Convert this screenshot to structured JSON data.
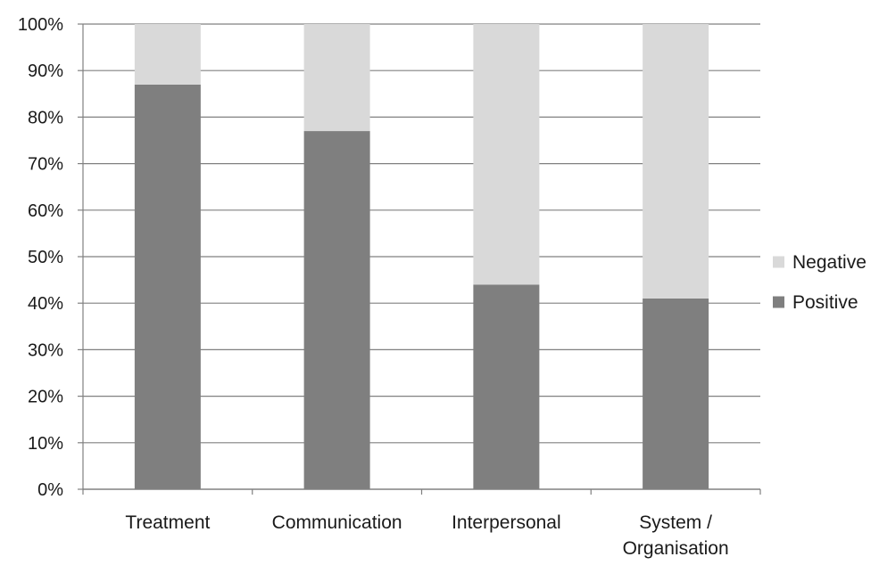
{
  "chart_data": {
    "type": "bar",
    "stacked": true,
    "percent_axis": true,
    "categories": [
      [
        "Treatment"
      ],
      [
        "Communication"
      ],
      [
        "Interpersonal"
      ],
      [
        "System /",
        "Organisation"
      ]
    ],
    "series": [
      {
        "name": "Positive",
        "color": "#7f7f7f",
        "values": [
          87,
          77,
          44,
          41
        ]
      },
      {
        "name": "Negative",
        "color": "#d9d9d9",
        "values": [
          13,
          23,
          56,
          59
        ]
      }
    ],
    "ylim": [
      0,
      100
    ],
    "y_ticks": [
      "0%",
      "10%",
      "20%",
      "30%",
      "40%",
      "50%",
      "60%",
      "70%",
      "80%",
      "90%",
      "100%"
    ],
    "grid": true,
    "grid_color": "#808080",
    "legend": {
      "placement": "right",
      "order": [
        "Negative",
        "Positive"
      ]
    },
    "title": "",
    "xlabel": "",
    "ylabel": ""
  }
}
